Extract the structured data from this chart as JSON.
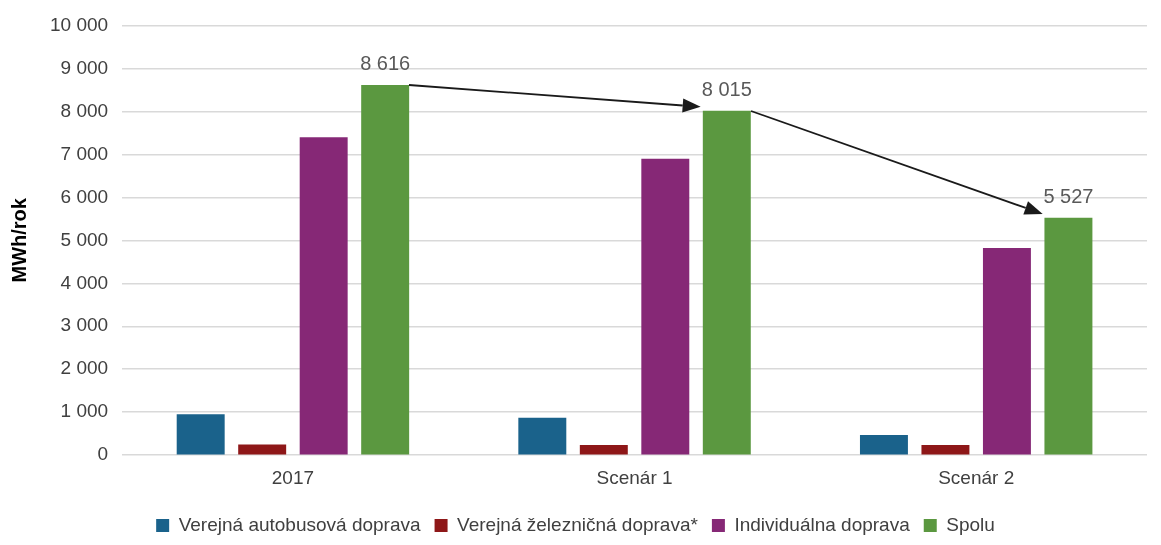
{
  "chart_data": {
    "type": "bar",
    "ylabel": "MWh/rok",
    "categories": [
      "2017",
      "Scenár 1",
      "Scenár 2"
    ],
    "series": [
      {
        "name": "Verejná autobusová doprava",
        "color": "#1a628b",
        "values": [
          950,
          870,
          470
        ]
      },
      {
        "name": "Verejná železničná doprava*",
        "color": "#8e1718",
        "values": [
          250,
          240,
          240
        ]
      },
      {
        "name": "Individuálna doprava",
        "color": "#862876",
        "values": [
          7400,
          6900,
          4820
        ]
      },
      {
        "name": "Spolu",
        "color": "#5b9840",
        "values": [
          8616,
          8015,
          5527
        ],
        "value_labels": [
          "8 616",
          "8 015",
          "5 527"
        ]
      }
    ],
    "ylim": [
      0,
      10000
    ],
    "yticks": [
      0,
      {
        "value": 1000,
        "label": "1 000"
      },
      {
        "value": 2000,
        "label": "2 000"
      },
      {
        "value": 3000,
        "label": "3 000"
      },
      {
        "value": 4000,
        "label": "4 000"
      },
      {
        "value": 5000,
        "label": "5 000"
      },
      {
        "value": 6000,
        "label": "6 000"
      },
      {
        "value": 7000,
        "label": "7 000"
      },
      {
        "value": 8000,
        "label": "8 000"
      },
      {
        "value": 9000,
        "label": "9 000"
      },
      {
        "value": 10000,
        "label": "10 000"
      }
    ],
    "grid": "y",
    "legend": "bottom"
  }
}
